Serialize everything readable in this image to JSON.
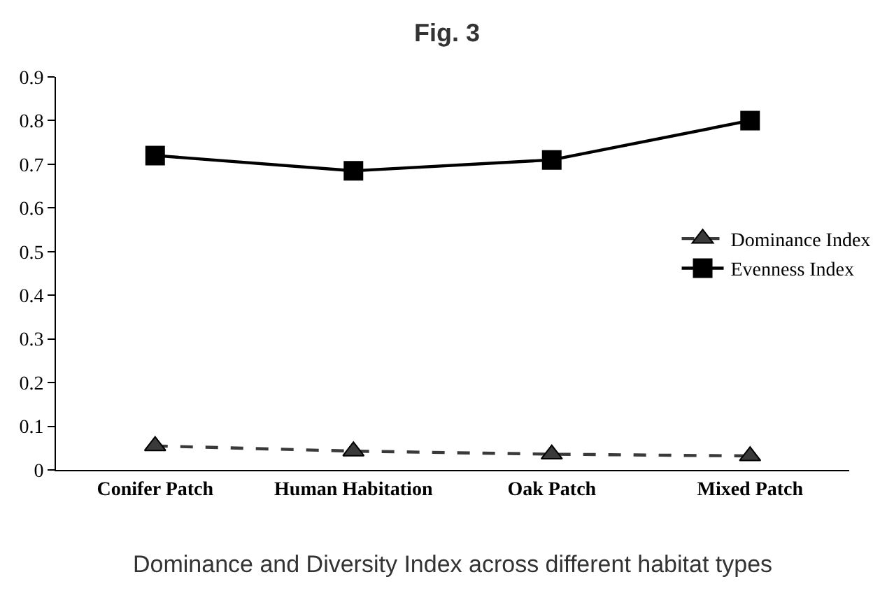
{
  "chart_data": {
    "type": "line",
    "title": "Fig. 3",
    "categories": [
      "Conifer Patch",
      "Human Habitation",
      "Oak Patch",
      "Mixed Patch"
    ],
    "series": [
      {
        "name": "Dominance Index",
        "color": "#3a3a3a",
        "marker": "triangle",
        "line_style": "dashed",
        "values": [
          0.055,
          0.043,
          0.036,
          0.032
        ]
      },
      {
        "name": "Evenness Index",
        "color": "#000000",
        "marker": "square",
        "line_style": "solid",
        "values": [
          0.72,
          0.685,
          0.71,
          0.8
        ]
      }
    ],
    "ylim": [
      0,
      0.9
    ],
    "yticks": [
      0,
      0.1,
      0.2,
      0.3,
      0.4,
      0.5,
      0.6,
      0.7,
      0.8,
      0.9
    ],
    "grid": false,
    "legend": "right",
    "annotations": [
      "Dominance and Diversity Index across different habitat types"
    ]
  }
}
